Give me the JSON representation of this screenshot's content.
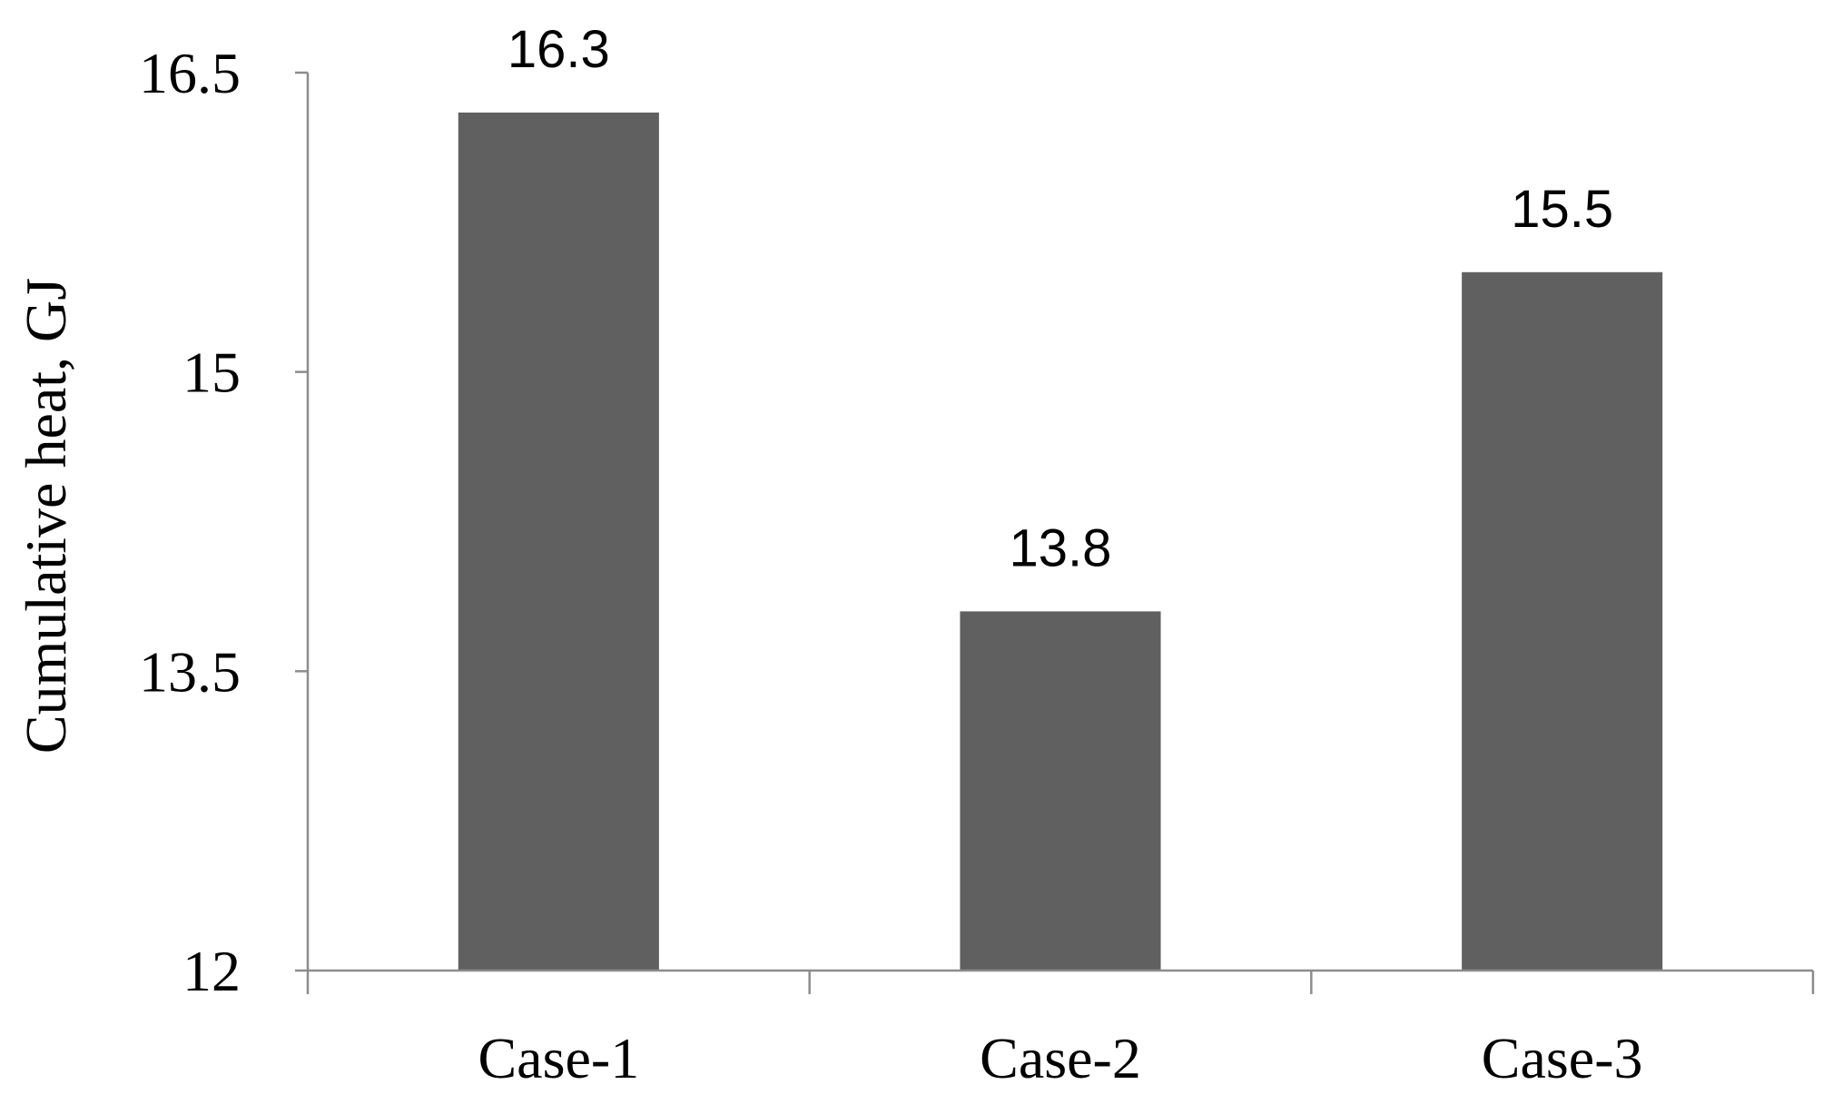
{
  "chart_data": {
    "type": "bar",
    "categories": [
      "Case-1",
      "Case-2",
      "Case-3"
    ],
    "values": [
      16.3,
      13.8,
      15.5
    ],
    "data_labels": [
      "16.3",
      "13.8",
      "15.5"
    ],
    "title": "",
    "xlabel": "",
    "ylabel": "Cumulative heat, GJ",
    "ylim": [
      12,
      16.5
    ],
    "yticks": [
      12,
      13.5,
      15,
      16.5
    ],
    "ytick_labels": [
      "12",
      "13.5",
      "15",
      "16.5"
    ],
    "grid": false,
    "legend": "none",
    "bar_color": "#606060",
    "axis_color": "#8c8c8c"
  }
}
